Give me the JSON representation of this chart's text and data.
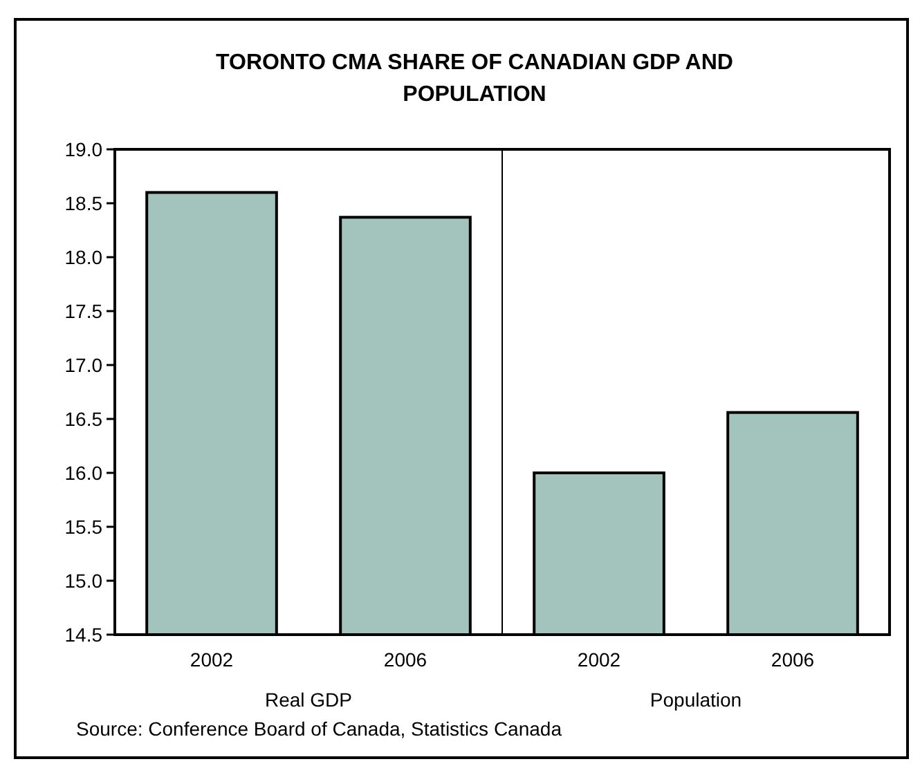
{
  "chart_data": {
    "type": "bar",
    "title": "TORONTO CMA SHARE OF CANADIAN GDP AND POPULATION",
    "categories": [
      "2002",
      "2006",
      "2002",
      "2006"
    ],
    "values": [
      18.6,
      18.37,
      16.0,
      16.56
    ],
    "color": "#a3c4bd",
    "ylim": [
      14.5,
      19.0
    ],
    "yticks": [
      {
        "value": 14.5,
        "label": "14.5"
      },
      {
        "value": 15,
        "label": "15.0"
      },
      {
        "value": 15.5,
        "label": "15.5"
      },
      {
        "value": 16,
        "label": "16.0"
      },
      {
        "value": 16.5,
        "label": "16.5"
      },
      {
        "value": 17,
        "label": "17.0"
      },
      {
        "value": 17.5,
        "label": "17.5"
      },
      {
        "value": 18,
        "label": "18.0"
      },
      {
        "value": 18.5,
        "label": "18.5"
      },
      {
        "value": 19,
        "label": "19.0"
      }
    ],
    "grid": false,
    "annotations": [
      "Real GDP",
      "Population",
      "Source: Conference Board of Canada, Statistics Canada"
    ]
  }
}
